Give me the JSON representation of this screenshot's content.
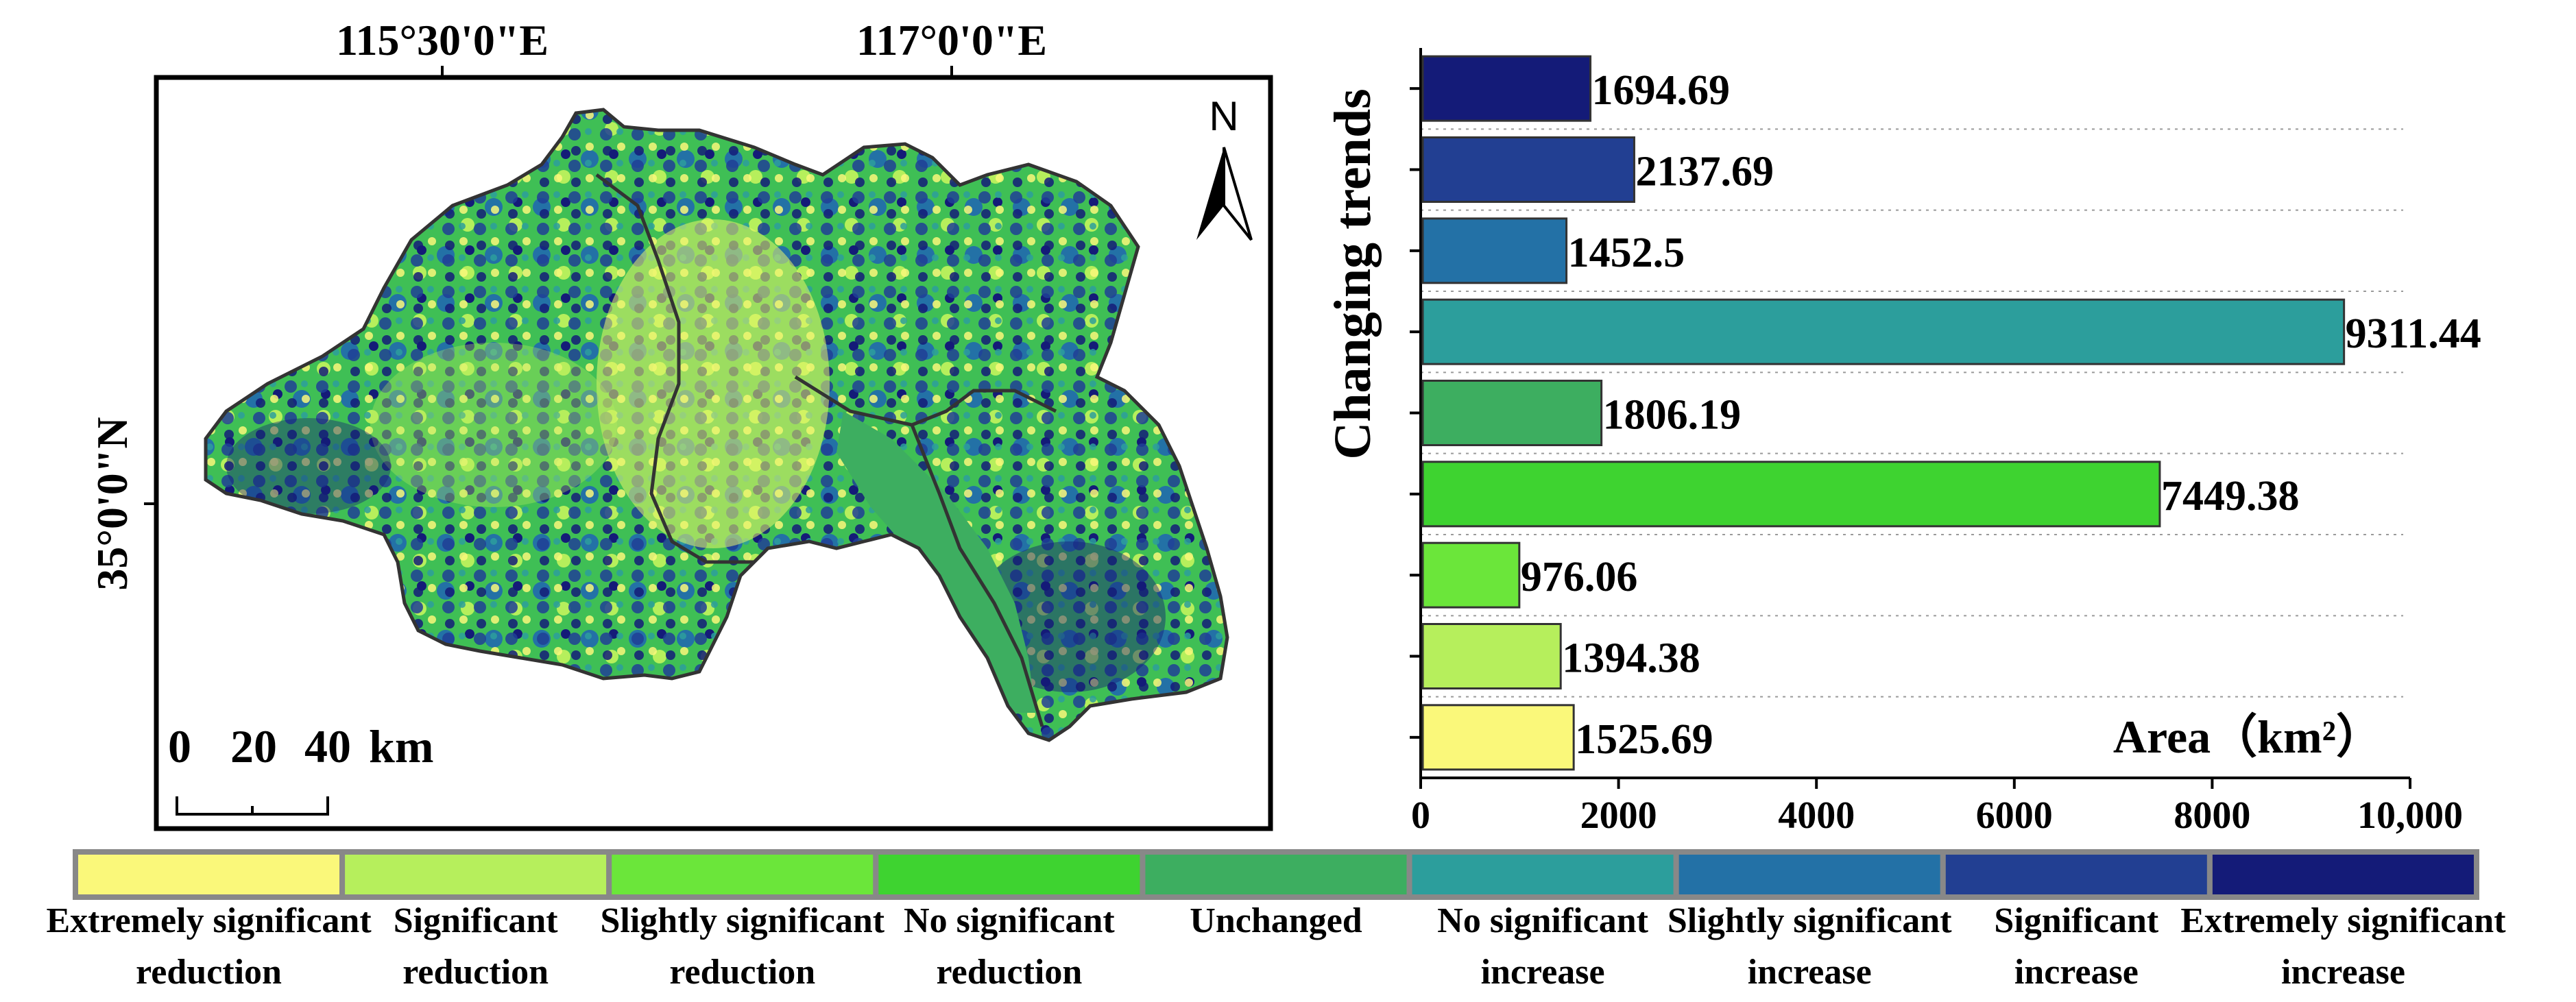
{
  "map": {
    "lon_label_1": "115°30'0\"E",
    "lon_label_2": "117°0'0\"E",
    "lat_label": "35°0'0\"N",
    "north_label": "N",
    "scale_labels": [
      "0",
      "20",
      "40"
    ],
    "scale_unit": "km"
  },
  "colors": {
    "extremely_significant_reduction": "#faf87a",
    "significant_reduction": "#b6ef5c",
    "slightly_significant_reduction": "#6be63a",
    "no_significant_reduction": "#3ed330",
    "unchanged": "#3dae60",
    "no_significant_increase": "#2c9e9c",
    "slightly_significant_increase": "#2371a6",
    "significant_increase": "#223f92",
    "extremely_significant_increase": "#141b78"
  },
  "legend": [
    {
      "line1": "Extremely significant",
      "line2": "reduction",
      "color": "#faf87a"
    },
    {
      "line1": "Significant",
      "line2": "reduction",
      "color": "#b6ef5c"
    },
    {
      "line1": "Slightly significant",
      "line2": "reduction",
      "color": "#6be63a"
    },
    {
      "line1": "No significant",
      "line2": "reduction",
      "color": "#3ed330"
    },
    {
      "line1": "Unchanged",
      "line2": "",
      "color": "#3dae60"
    },
    {
      "line1": "No significant",
      "line2": "increase",
      "color": "#2c9e9c"
    },
    {
      "line1": "Slightly significant",
      "line2": "increase",
      "color": "#2371a6"
    },
    {
      "line1": "Significant",
      "line2": "increase",
      "color": "#223f92"
    },
    {
      "line1": "Extremely significant",
      "line2": "increase",
      "color": "#141b78"
    }
  ],
  "chart_data": {
    "type": "bar",
    "orientation": "horizontal",
    "ylabel": "Changing trends",
    "xlabel": "Area（km²）",
    "xlim": [
      0,
      10000
    ],
    "xticks": [
      "0",
      "2000",
      "4000",
      "6000",
      "8000",
      "10,000"
    ],
    "grid": "dotted horizontal",
    "categories_top_to_bottom": [
      "Extremely significant increase",
      "Significant increase",
      "Slightly significant increase",
      "No significant increase",
      "Unchanged",
      "No significant reduction",
      "Slightly significant reduction",
      "Significant reduction",
      "Extremely significant reduction"
    ],
    "values": [
      1694.69,
      2137.69,
      1452.5,
      9311.44,
      1806.19,
      7449.38,
      976.06,
      1394.38,
      1525.69
    ],
    "value_labels": [
      "1694.69",
      "2137.69",
      "1452.5",
      "9311.44",
      "1806.19",
      "7449.38",
      "976.06",
      "1394.38",
      "1525.69"
    ],
    "colors": [
      "#141b78",
      "#223f92",
      "#2371a6",
      "#2c9e9c",
      "#3dae60",
      "#3ed330",
      "#6be63a",
      "#b6ef5c",
      "#faf87a"
    ]
  }
}
